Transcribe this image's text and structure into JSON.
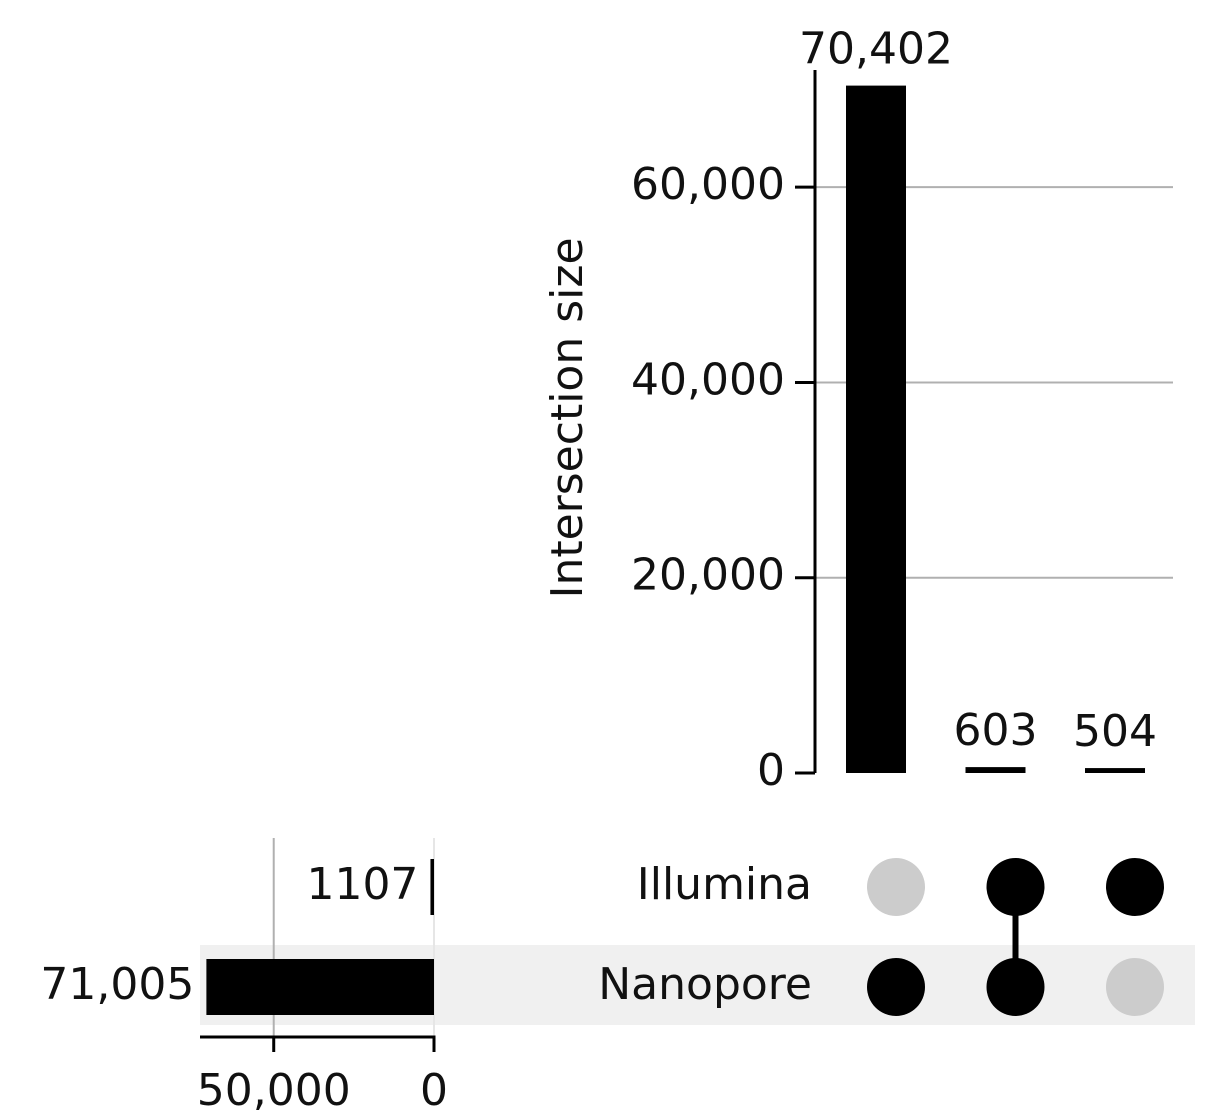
{
  "chart_data": {
    "type": "upset",
    "y_label": "Intersection size",
    "values": [
      70402,
      603,
      504
    ],
    "value_labels": [
      "70,402",
      "603",
      "504"
    ],
    "color": "#000000",
    "ylim": [
      0,
      72000
    ],
    "yticks": [
      0,
      {
        "value": 20000,
        "label": "20,000"
      },
      {
        "value": 40000,
        "label": "40,000"
      },
      {
        "value": 60000,
        "label": "60,000"
      }
    ],
    "grid": true,
    "sets": {
      "names": [
        "Illumina",
        "Nanopore"
      ],
      "values": [
        1107,
        71005
      ],
      "value_labels": [
        "1107",
        "71,005"
      ],
      "xlim": [
        0,
        73000
      ],
      "xticks": [
        {
          "value": 50000,
          "label": "50,000"
        },
        0
      ]
    },
    "membership": [
      [
        false,
        true
      ],
      [
        true,
        true
      ],
      [
        true,
        false
      ]
    ],
    "inactive_color": "#cccccc"
  }
}
